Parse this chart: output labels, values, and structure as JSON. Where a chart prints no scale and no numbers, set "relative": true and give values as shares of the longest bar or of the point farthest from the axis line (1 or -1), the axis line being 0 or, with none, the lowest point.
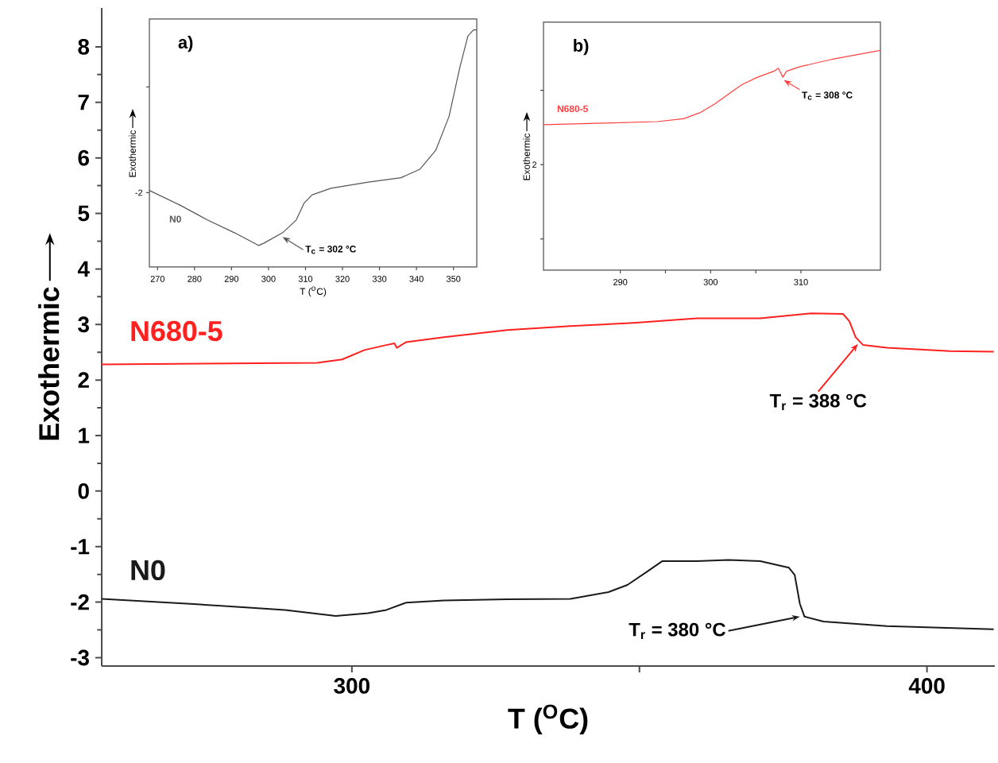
{
  "chart_data": [
    {
      "type": "line",
      "xlabel": "T ($^{O}$C)",
      "ylabel": "Exothermic",
      "xlim": [
        256.5,
        411.8
      ],
      "ylim": [
        -3.15,
        8.7
      ],
      "xticks": [
        300,
        {
          "value": 350,
          "label": null
        },
        400
      ],
      "yticks": [
        -3,
        -2,
        -1,
        0,
        1,
        2,
        3,
        4,
        5,
        6,
        7,
        8
      ],
      "legend": false,
      "grid": false,
      "marker": "none",
      "line_style": "solid",
      "series": [
        {
          "name": "N680-5",
          "color": "#ff2020",
          "x": [
            256.5,
            294,
            298.3,
            302.2,
            306,
            307.4,
            307.8,
            309.4,
            316,
            327,
            338,
            349,
            360,
            371,
            379.8,
            385.4,
            386.5,
            387.6,
            388.9,
            393,
            404,
            411.6
          ],
          "values": [
            2.28,
            2.31,
            2.37,
            2.54,
            2.63,
            2.66,
            2.58,
            2.68,
            2.77,
            2.9,
            2.97,
            3.03,
            3.11,
            3.11,
            3.2,
            3.19,
            3.06,
            2.77,
            2.63,
            2.58,
            2.52,
            2.51
          ]
        },
        {
          "name": "N0",
          "color": "#1a1a1a",
          "x": [
            256.5,
            271.9,
            288.4,
            297.2,
            302.8,
            306,
            309.4,
            316,
            327,
            338,
            344.6,
            347.9,
            351.2,
            354,
            360,
            365.5,
            371,
            376,
            377,
            377.9,
            378.7,
            382,
            393,
            411.6
          ],
          "values": [
            -1.94,
            -2.03,
            -2.14,
            -2.25,
            -2.2,
            -2.14,
            -2.01,
            -1.97,
            -1.95,
            -1.94,
            -1.82,
            -1.69,
            -1.46,
            -1.26,
            -1.26,
            -1.24,
            -1.26,
            -1.38,
            -1.51,
            -2.03,
            -2.26,
            -2.35,
            -2.43,
            -2.49
          ]
        }
      ],
      "annotations": [
        {
          "text": "T$_{r}$ = 388 °C",
          "x": 388,
          "y": 2.65
        },
        {
          "text": "T$_{r}$ = 380 °C",
          "x": 377.9,
          "y": -2.26
        }
      ]
    },
    {
      "type": "line",
      "title": "a)",
      "xlabel": "T ($^{o}$C)",
      "ylabel": "Exothermic",
      "xlim": [
        267.8,
        356.3
      ],
      "relative": true,
      "xticks": [
        270,
        280,
        290,
        300,
        310,
        320,
        330,
        340,
        350
      ],
      "legend": false,
      "grid": false,
      "marker": "none",
      "line_style": "solid",
      "series": [
        {
          "name": "N0",
          "color": "#555555",
          "x": [
            267.8,
            276.2,
            283.5,
            290.8,
            297.3,
            298.7,
            303.8,
            307.5,
            309.6,
            311.8,
            316.9,
            327,
            335.8,
            340.9,
            345.2,
            348.8,
            351.7,
            353.9,
            355.4,
            356.3
          ],
          "values": [
            0.255,
            0.186,
            0.118,
            0.059,
            0,
            0.01,
            0.059,
            0.118,
            0.196,
            0.235,
            0.265,
            0.294,
            0.314,
            0.353,
            0.441,
            0.598,
            0.824,
            0.971,
            1,
            1
          ]
        }
      ],
      "annotations": [
        {
          "text": "T$_{c}$ = 302 °C",
          "x": 303.8,
          "y": 0.039
        },
        "-2"
      ]
    },
    {
      "type": "line",
      "title": "b)",
      "ylabel": "Exothermic",
      "xlim": [
        281.5,
        318.8
      ],
      "relative": true,
      "xticks": [
        290,
        300,
        310
      ],
      "legend": false,
      "grid": false,
      "marker": "none",
      "line_style": "solid",
      "series": [
        {
          "name": "N680-5",
          "color": "#ff4040",
          "x": [
            281.5,
            288.2,
            294.1,
            297,
            298.8,
            300.5,
            302.3,
            303.5,
            305.2,
            307,
            307.5,
            308,
            308.4,
            309.9,
            313.4,
            318.8
          ],
          "values": [
            0.662,
            0.669,
            0.676,
            0.689,
            0.716,
            0.757,
            0.811,
            0.845,
            0.878,
            0.905,
            0.919,
            0.878,
            0.905,
            0.926,
            0.959,
            1
          ]
        }
      ],
      "annotations": [
        {
          "text": "T$_{c}$ = 308 °C",
          "x": 308.1,
          "y": 0.865
        },
        "2"
      ]
    }
  ]
}
